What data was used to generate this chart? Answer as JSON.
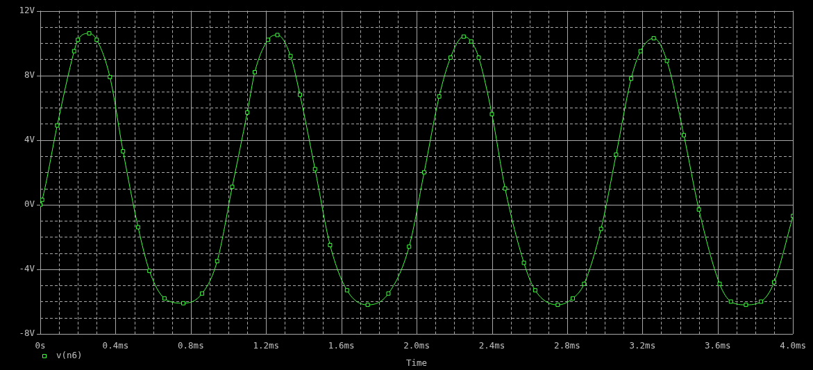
{
  "chart_data": {
    "type": "line",
    "xlabel": "Time",
    "x": [
      0,
      0.01,
      0.09,
      0.18,
      0.2,
      0.26,
      0.3,
      0.37,
      0.44,
      0.52,
      0.58,
      0.66,
      0.76,
      0.86,
      0.94,
      1.02,
      1.1,
      1.14,
      1.21,
      1.26,
      1.33,
      1.38,
      1.46,
      1.54,
      1.63,
      1.74,
      1.85,
      1.96,
      2.04,
      2.12,
      2.18,
      2.25,
      2.29,
      2.33,
      2.4,
      2.47,
      2.57,
      2.63,
      2.75,
      2.83,
      2.89,
      2.98,
      3.06,
      3.14,
      3.19,
      3.26,
      3.33,
      3.42,
      3.5,
      3.61,
      3.67,
      3.75,
      3.83,
      3.9,
      4.0
    ],
    "series": [
      {
        "name": "v(n6)",
        "color": "#40ff40",
        "values": [
          0.0,
          0.3,
          4.9,
          9.5,
          10.2,
          10.6,
          10.2,
          7.9,
          3.3,
          -1.4,
          -4.1,
          -5.8,
          -6.1,
          -5.5,
          -3.5,
          1.1,
          5.7,
          8.2,
          10.2,
          10.5,
          9.2,
          6.8,
          2.2,
          -2.5,
          -5.3,
          -6.2,
          -5.5,
          -2.6,
          2.0,
          6.7,
          9.1,
          10.4,
          10.1,
          9.1,
          5.6,
          1.0,
          -3.6,
          -5.3,
          -6.2,
          -5.8,
          -4.9,
          -1.5,
          3.1,
          7.8,
          9.5,
          10.3,
          8.9,
          4.3,
          -0.3,
          -4.9,
          -6.0,
          -6.2,
          -6.0,
          -4.8,
          -0.7
        ]
      }
    ],
    "xlim": [
      0,
      4
    ],
    "xticks": [
      {
        "value": 0,
        "label": "0s"
      },
      {
        "value": 0.1,
        "label": null
      },
      {
        "value": 0.2,
        "label": null
      },
      {
        "value": 0.3,
        "label": null
      },
      {
        "value": 0.4,
        "label": "0.4ms"
      },
      {
        "value": 0.5,
        "label": null
      },
      {
        "value": 0.6,
        "label": null
      },
      {
        "value": 0.7,
        "label": null
      },
      {
        "value": 0.8,
        "label": "0.8ms"
      },
      {
        "value": 0.9,
        "label": null
      },
      {
        "value": 1.0,
        "label": null
      },
      {
        "value": 1.1,
        "label": null
      },
      {
        "value": 1.2,
        "label": "1.2ms"
      },
      {
        "value": 1.3,
        "label": null
      },
      {
        "value": 1.4,
        "label": null
      },
      {
        "value": 1.5,
        "label": null
      },
      {
        "value": 1.6,
        "label": "1.6ms"
      },
      {
        "value": 1.7,
        "label": null
      },
      {
        "value": 1.8,
        "label": null
      },
      {
        "value": 1.9,
        "label": null
      },
      {
        "value": 2.0,
        "label": "2.0ms"
      },
      {
        "value": 2.1,
        "label": null
      },
      {
        "value": 2.2,
        "label": null
      },
      {
        "value": 2.3,
        "label": null
      },
      {
        "value": 2.4,
        "label": "2.4ms"
      },
      {
        "value": 2.5,
        "label": null
      },
      {
        "value": 2.6,
        "label": null
      },
      {
        "value": 2.7,
        "label": null
      },
      {
        "value": 2.8,
        "label": "2.8ms"
      },
      {
        "value": 2.9,
        "label": null
      },
      {
        "value": 3.0,
        "label": null
      },
      {
        "value": 3.1,
        "label": null
      },
      {
        "value": 3.2,
        "label": "3.2ms"
      },
      {
        "value": 3.3,
        "label": null
      },
      {
        "value": 3.4,
        "label": null
      },
      {
        "value": 3.5,
        "label": null
      },
      {
        "value": 3.6,
        "label": "3.6ms"
      },
      {
        "value": 3.7,
        "label": null
      },
      {
        "value": 3.8,
        "label": null
      },
      {
        "value": 3.9,
        "label": null
      },
      {
        "value": 4.0,
        "label": "4.0ms"
      }
    ],
    "ylim": [
      -8,
      12
    ],
    "yticks": [
      {
        "value": -8,
        "label": "-8V"
      },
      {
        "value": -7,
        "label": null
      },
      {
        "value": -6,
        "label": null
      },
      {
        "value": -5,
        "label": null
      },
      {
        "value": -4,
        "label": "-4V"
      },
      {
        "value": -3,
        "label": null
      },
      {
        "value": -2,
        "label": null
      },
      {
        "value": -1,
        "label": null
      },
      {
        "value": 0,
        "label": "0V"
      },
      {
        "value": 1,
        "label": null
      },
      {
        "value": 2,
        "label": null
      },
      {
        "value": 3,
        "label": null
      },
      {
        "value": 4,
        "label": "4V"
      },
      {
        "value": 5,
        "label": null
      },
      {
        "value": 6,
        "label": null
      },
      {
        "value": 7,
        "label": null
      },
      {
        "value": 8,
        "label": "8V"
      },
      {
        "value": 9,
        "label": null
      },
      {
        "value": 10,
        "label": null
      },
      {
        "value": 11,
        "label": null
      },
      {
        "value": 12,
        "label": "12V"
      }
    ],
    "grid": true,
    "legend": "bottom left",
    "marker": "square",
    "line_style": "solid"
  }
}
